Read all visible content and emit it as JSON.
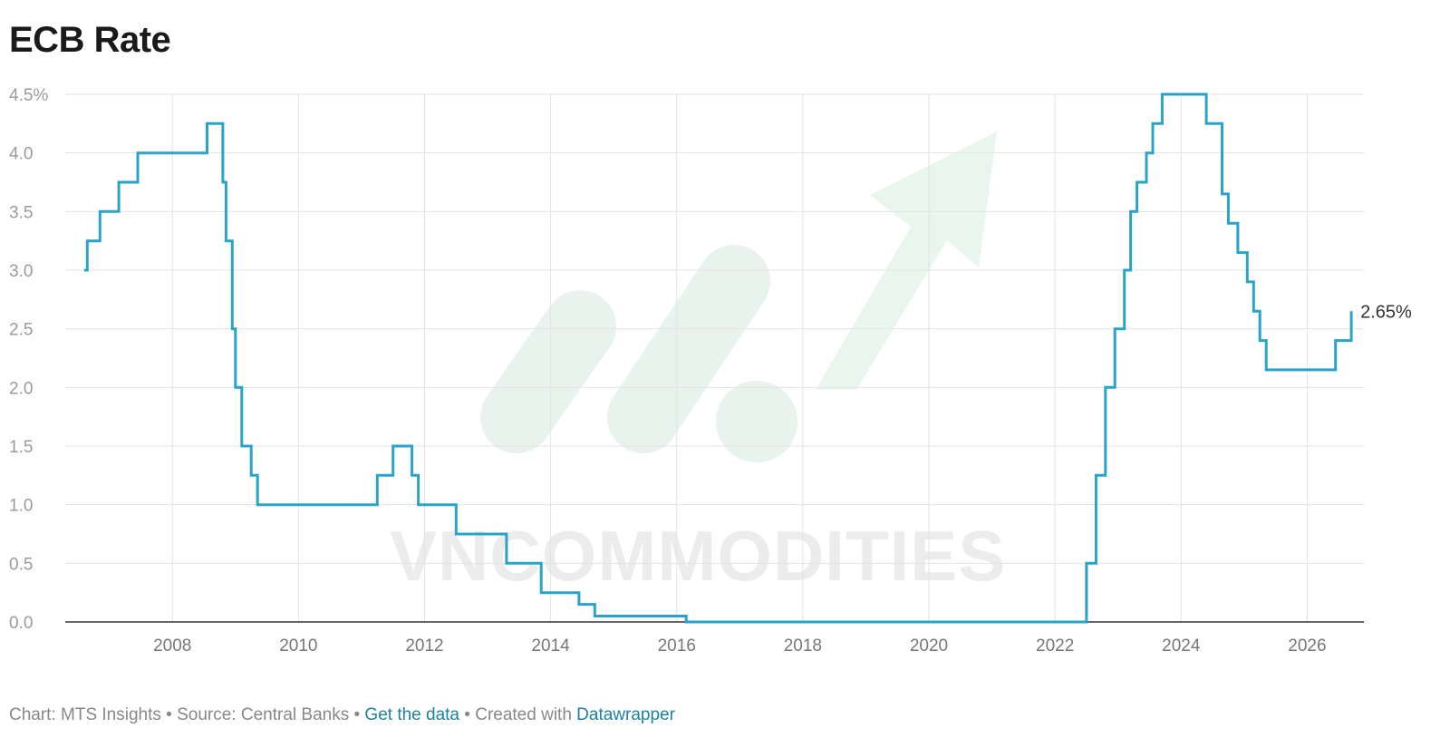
{
  "header": {
    "title": "ECB Rate"
  },
  "watermark": {
    "text": "VNCOMMODITIES"
  },
  "chart_data": {
    "type": "line",
    "title": "ECB Rate",
    "step": true,
    "color": "#2aa3c8",
    "xlim": [
      2006.3,
      2026.9
    ],
    "ylim": [
      0,
      4.5
    ],
    "y_ticks": [
      0,
      0.5,
      1,
      1.5,
      2,
      2.5,
      3,
      3.5,
      4,
      4.5
    ],
    "y_tick_labels": [
      "0.0",
      "0.5",
      "1.0",
      "1.5",
      "2.0",
      "2.5",
      "3.0",
      "3.5",
      "4.0",
      "4.5%"
    ],
    "x_ticks": [
      2008,
      2010,
      2012,
      2014,
      2016,
      2018,
      2020,
      2022,
      2024,
      2026
    ],
    "x_tick_labels": [
      "2008",
      "2010",
      "2012",
      "2014",
      "2016",
      "2018",
      "2020",
      "2022",
      "2024",
      "2026"
    ],
    "grid": true,
    "end_label": "2.65%",
    "series": [
      {
        "x": [
          2006.6,
          2006.65,
          2006.85,
          2007.15,
          2007.45,
          2008.55,
          2008.8,
          2008.85,
          2008.95,
          2009.0,
          2009.1,
          2009.25,
          2009.35,
          2011.25,
          2011.5,
          2011.8,
          2011.9,
          2012.5,
          2013.3,
          2013.85,
          2014.45,
          2014.7,
          2016.15,
          2022.5,
          2022.65,
          2022.8,
          2022.95,
          2023.1,
          2023.2,
          2023.3,
          2023.45,
          2023.55,
          2023.7,
          2024.4,
          2024.65,
          2024.75,
          2024.9,
          2025.05,
          2025.15,
          2025.25,
          2025.35,
          2025.45,
          2026.45,
          2026.65,
          2026.7
        ],
        "y": [
          3.0,
          3.25,
          3.5,
          3.75,
          4.0,
          4.25,
          3.75,
          3.25,
          2.5,
          2.0,
          1.5,
          1.25,
          1.0,
          1.25,
          1.5,
          1.25,
          1.0,
          0.75,
          0.5,
          0.25,
          0.15,
          0.05,
          0.0,
          0.5,
          1.25,
          2.0,
          2.5,
          3.0,
          3.5,
          3.75,
          4.0,
          4.25,
          4.5,
          4.25,
          3.65,
          3.4,
          3.15,
          2.9,
          2.65,
          2.4,
          2.15,
          2.15,
          2.4,
          2.4,
          2.65
        ]
      }
    ]
  },
  "footer": {
    "chart_credit": "Chart: MTS Insights",
    "sep1": " • ",
    "source": "Source: Central Banks",
    "sep2": " • ",
    "get_data": "Get the data",
    "sep3": " • ",
    "created_with": "Created with ",
    "datawrapper": "Datawrapper"
  }
}
